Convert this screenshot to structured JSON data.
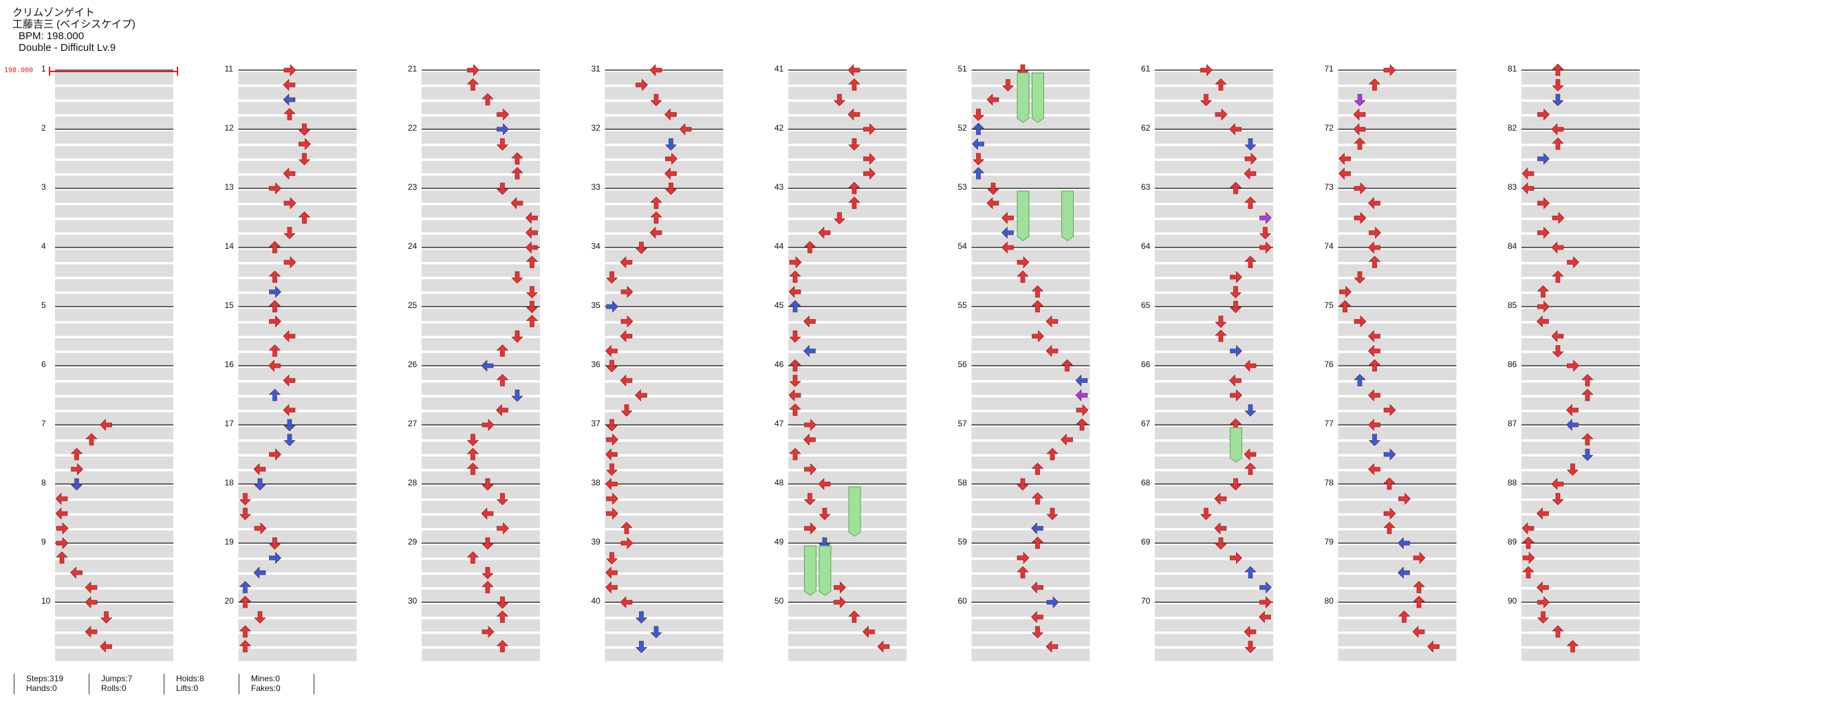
{
  "song": {
    "title": "クリムゾンゲイト",
    "artist": "工藤吉三 (ベイシスケイプ)",
    "bpm_line": "BPM: 198.000",
    "difficulty_line": "Double - Difficult Lv.9",
    "bpm_marker_label": "198.000"
  },
  "measure_numbers": [
    "1",
    "2",
    "3",
    "4",
    "5",
    "6",
    "7",
    "8",
    "9",
    "10",
    "11",
    "12",
    "13",
    "14",
    "15",
    "16",
    "17",
    "18",
    "19",
    "20",
    "21",
    "22",
    "23",
    "24",
    "25",
    "26",
    "27",
    "28",
    "29",
    "30",
    "31",
    "32",
    "33",
    "34",
    "35",
    "36",
    "37",
    "38",
    "39",
    "40",
    "41",
    "42",
    "43",
    "44",
    "45",
    "46",
    "47",
    "48",
    "49",
    "50",
    "51",
    "52",
    "53",
    "54",
    "55",
    "56",
    "57",
    "58",
    "59",
    "60",
    "61",
    "62",
    "63",
    "64",
    "65",
    "66",
    "67",
    "68",
    "69",
    "70",
    "71",
    "72",
    "73",
    "74",
    "75",
    "76",
    "77",
    "78",
    "79",
    "80",
    "81",
    "82",
    "83",
    "84",
    "85",
    "86",
    "87",
    "88",
    "89",
    "90"
  ],
  "colors": {
    "red_note": "#e63333",
    "blue_note": "#2f5fe0",
    "purple_note": "#a23fe6",
    "hold": "#9fe09a",
    "bpm": "#e02020",
    "row_band": "#dddddd"
  },
  "stats": [
    {
      "line1": "Steps:319",
      "line2": "Hands:0"
    },
    {
      "line1": "Jumps:7",
      "line2": "Rolls:0"
    },
    {
      "line1": "Holds:8",
      "line2": "Lifts:0"
    },
    {
      "line1": "Mines:0",
      "line2": "Fakes:0"
    }
  ]
}
